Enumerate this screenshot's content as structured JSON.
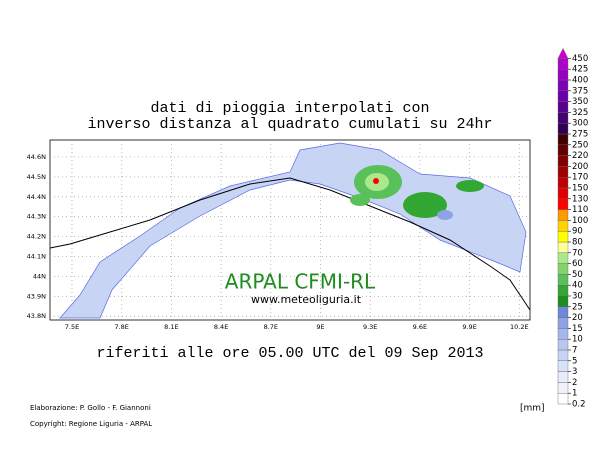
{
  "title_lines": [
    "dati di pioggia interpolati con",
    "inverso distanza al quadrato cumulati su 24hr"
  ],
  "subtitle": "riferiti alle ore 05.00 UTC del 09 Sep 2013",
  "map_label": "ARPAL CFMI-RL",
  "map_url": "www.meteoliguria.it",
  "lat_labels": [
    "44.6N",
    "44.5N",
    "44.4N",
    "44.3N",
    "44.2N",
    "44.1N",
    "44N",
    "43.9N",
    "43.8N"
  ],
  "lon_labels": [
    "7.5E",
    "7.8E",
    "8.1E",
    "8.4E",
    "8.7E",
    "9E",
    "9.3E",
    "9.6E",
    "9.9E",
    "10.2E"
  ],
  "legend": {
    "unit": "[mm]",
    "items": [
      {
        "label": "0.2",
        "color": "#ffffff"
      },
      {
        "label": "1",
        "color": "#f4f0fa"
      },
      {
        "label": "2",
        "color": "#e6ecfa"
      },
      {
        "label": "3",
        "color": "#d8e2f8"
      },
      {
        "label": "5",
        "color": "#c8d4f4"
      },
      {
        "label": "7",
        "color": "#b8c6f0"
      },
      {
        "label": "10",
        "color": "#a4b6ec"
      },
      {
        "label": "15",
        "color": "#8ea2e6"
      },
      {
        "label": "20",
        "color": "#7088dc"
      },
      {
        "label": "25",
        "color": "#1e8c1e"
      },
      {
        "label": "30",
        "color": "#32a832"
      },
      {
        "label": "40",
        "color": "#5ac05a"
      },
      {
        "label": "50",
        "color": "#82d46a"
      },
      {
        "label": "60",
        "color": "#aae88c"
      },
      {
        "label": "70",
        "color": "#ffff99"
      },
      {
        "label": "80",
        "color": "#ffff00"
      },
      {
        "label": "90",
        "color": "#ffd200"
      },
      {
        "label": "100",
        "color": "#ff9900"
      },
      {
        "label": "110",
        "color": "#ff0000"
      },
      {
        "label": "130",
        "color": "#e00000"
      },
      {
        "label": "150",
        "color": "#c00000"
      },
      {
        "label": "170",
        "color": "#a00000"
      },
      {
        "label": "200",
        "color": "#800000"
      },
      {
        "label": "220",
        "color": "#600000"
      },
      {
        "label": "250",
        "color": "#400000"
      },
      {
        "label": "275",
        "color": "#300050"
      },
      {
        "label": "300",
        "color": "#440070"
      },
      {
        "label": "325",
        "color": "#580090"
      },
      {
        "label": "350",
        "color": "#6c00a8"
      },
      {
        "label": "375",
        "color": "#8000b8"
      },
      {
        "label": "400",
        "color": "#9800c4"
      },
      {
        "label": "425",
        "color": "#b000cc"
      },
      {
        "label": "450",
        "color": "#cc00cc"
      }
    ]
  },
  "credits": [
    "Elaborazione: P. Gollo - F. Giannoni",
    "Copyright: Regione Liguria - ARPAL"
  ]
}
